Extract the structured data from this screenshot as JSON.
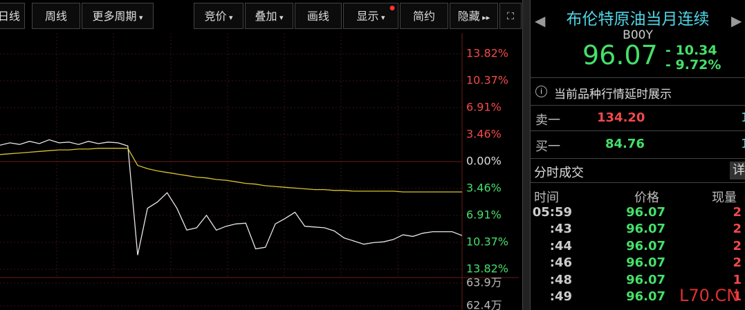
{
  "toolbar": {
    "buttons": [
      "日线",
      "周线",
      "更多周期",
      "竞价",
      "叠加",
      "画线",
      "显示",
      "简约",
      "隐藏"
    ]
  },
  "chart_data": {
    "type": "line",
    "series": [
      {
        "color": "#e8e8e8",
        "values": [
          2.1,
          2.4,
          2.2,
          2.6,
          2.3,
          2.8,
          2.4,
          2.5,
          2.2,
          2.6,
          2.3,
          2.5,
          2.4,
          2.0,
          -12.0,
          -6.0,
          -5.2,
          -4.0,
          -6.0,
          -8.8,
          -8.5,
          -6.9,
          -8.8,
          -8.3,
          -8.0,
          -7.9,
          -11.2,
          -11.0,
          -8.0,
          -7.3,
          -6.5,
          -8.3,
          -8.4,
          -8.5,
          -8.9,
          -9.8,
          -10.2,
          -10.6,
          -10.4,
          -10.3,
          -10.0,
          -9.4,
          -9.6,
          -9.2,
          -9.0,
          -9.0,
          -9.0,
          -9.5
        ]
      },
      {
        "color": "#d8c62e",
        "values": [
          0.9,
          1.0,
          1.1,
          1.2,
          1.3,
          1.4,
          1.5,
          1.5,
          1.6,
          1.6,
          1.7,
          1.7,
          1.7,
          1.7,
          -0.5,
          -0.9,
          -1.2,
          -1.4,
          -1.6,
          -1.8,
          -2.0,
          -2.1,
          -2.3,
          -2.4,
          -2.6,
          -2.8,
          -2.9,
          -3.1,
          -3.2,
          -3.3,
          -3.4,
          -3.5,
          -3.6,
          -3.6,
          -3.7,
          -3.7,
          -3.8,
          -3.8,
          -3.8,
          -3.8,
          -3.8,
          -3.9,
          -3.9,
          -3.9,
          -3.9,
          -3.9,
          -3.9,
          -3.9
        ]
      }
    ],
    "ylim": [
      -13.82,
      13.82
    ],
    "yticks": [
      {
        "value": 13.82,
        "label": "13.82%"
      },
      {
        "value": 10.37,
        "label": "10.37%"
      },
      {
        "value": 6.91,
        "label": "6.91%"
      },
      {
        "value": 3.46,
        "label": "3.46%"
      },
      {
        "value": 0,
        "label": "0.00%"
      },
      {
        "value": -3.46,
        "label": "3.46%"
      },
      {
        "value": -6.91,
        "label": "6.91%"
      },
      {
        "value": -10.37,
        "label": "10.37%"
      },
      {
        "value": -13.82,
        "label": "13.82%"
      }
    ],
    "y2lim": [
      621300,
      639000
    ],
    "y2ticks": [
      {
        "value": 639000,
        "label": "63.9万"
      },
      {
        "value": 624000,
        "label": "62.4万"
      }
    ],
    "grid": true
  },
  "quote": {
    "title": "布伦特原油当月连续",
    "code": "B00Y",
    "price": "96.07",
    "change": "- 10.34",
    "change_pct": "- 9.72%",
    "notice": "当前品种行情延时展示",
    "ask": {
      "label": "卖一",
      "price": "134.20",
      "volume": "1"
    },
    "bid": {
      "label": "买一",
      "price": "84.76",
      "volume": "1"
    },
    "ticks_title": "分时成交",
    "detail": "详",
    "headers": [
      "时间",
      "价格",
      "现量"
    ],
    "rows": [
      [
        "05:59",
        "96.07",
        "2"
      ],
      [
        ":43",
        "96.07",
        "2"
      ],
      [
        ":44",
        "96.07",
        "2"
      ],
      [
        ":46",
        "96.07",
        "2"
      ],
      [
        ":48",
        "96.07",
        "1"
      ],
      [
        ":49",
        "96.07",
        "1"
      ]
    ]
  },
  "watermark": "L70.CN"
}
